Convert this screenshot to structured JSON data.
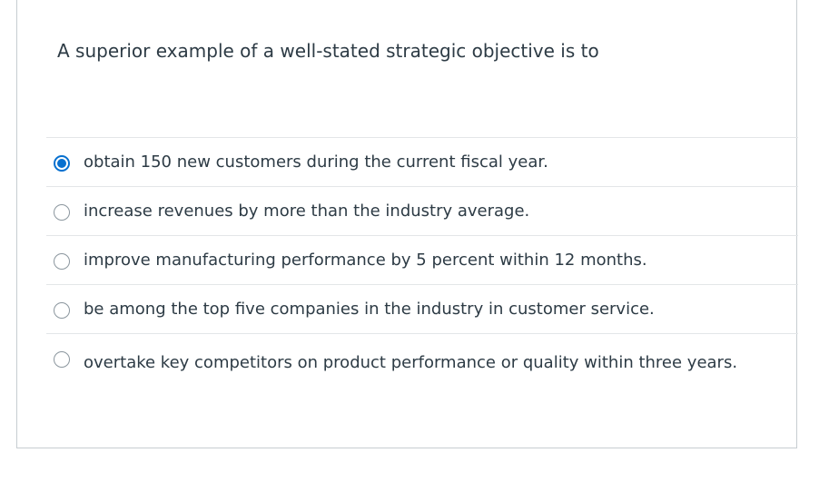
{
  "question": {
    "text": "A superior example of a well-stated strategic objective is to"
  },
  "answers": [
    {
      "label": "obtain 150 new customers during the current fiscal year.",
      "selected": true
    },
    {
      "label": "increase revenues by more than the industry average.",
      "selected": false
    },
    {
      "label": "improve manufacturing performance by 5 percent within 12 months.",
      "selected": false
    },
    {
      "label": "be among the top five companies in the industry in customer service.",
      "selected": false
    },
    {
      "label": "overtake key competitors on product performance or quality within three years.",
      "selected": false
    }
  ],
  "colors": {
    "accent": "#0770cf",
    "text": "#2d3b45",
    "border": "#c7cdd1",
    "divider": "#e3e6e8"
  }
}
